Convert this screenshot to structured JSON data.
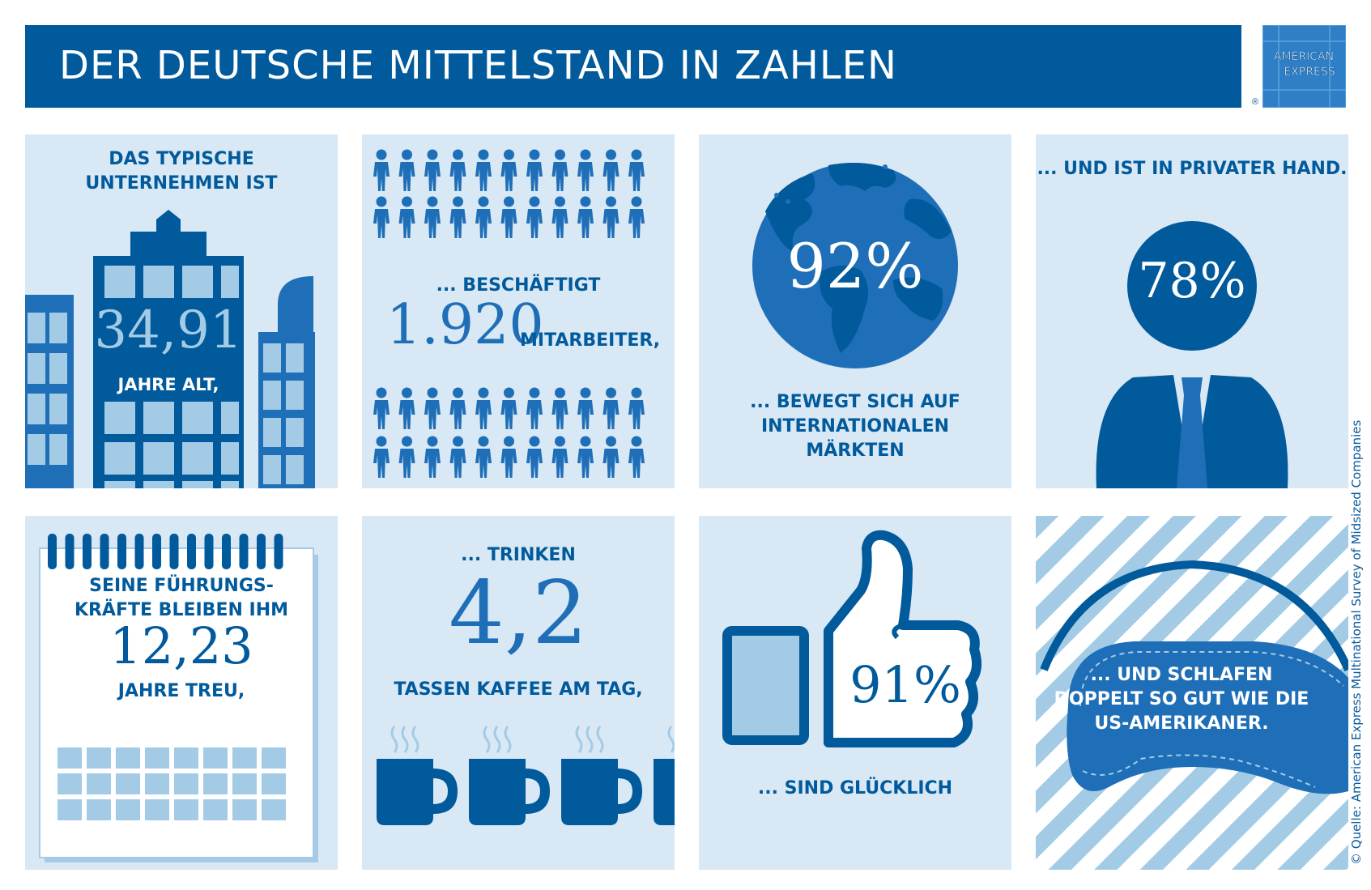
{
  "header": {
    "title": "DER DEUTSCHE MITTELSTAND IN ZAHLEN"
  },
  "logo": {
    "line1": "AMERICAN",
    "line2": "EXPRESS",
    "reg": "®"
  },
  "colors": {
    "dark_blue": "#005a9c",
    "mid_blue": "#1f6fb8",
    "light_blue": "#a4cbe6",
    "panel_bg": "#d8e8f4"
  },
  "panels": {
    "age": {
      "caption1": "DAS TYPISCHE",
      "caption2": "UNTERNEHMEN IST",
      "value": "34,91",
      "unit": "JAHRE ALT,"
    },
    "employees": {
      "caption": "... BESCHÄFTIGT",
      "value": "1.920",
      "unit": "MITARBEITER,"
    },
    "international": {
      "value": "92%",
      "caption1": "... BEWEGT SICH AUF",
      "caption2": "INTERNATIONALEN",
      "caption3": "MÄRKTEN"
    },
    "private": {
      "caption": "... UND IST IN PRIVATER HAND.",
      "value": "78%"
    },
    "loyalty": {
      "caption1": "SEINE FÜHRUNGS-",
      "caption2": "KRÄFTE BLEIBEN IHM",
      "value": "12,23",
      "unit": "JAHRE TREU,"
    },
    "coffee": {
      "caption": "... TRINKEN",
      "value": "4,2",
      "unit": "TASSEN KAFFEE AM TAG,"
    },
    "happy": {
      "value": "91%",
      "caption": "... SIND GLÜCKLICH"
    },
    "sleep": {
      "caption1": "... UND SCHLAFEN",
      "caption2": "DOPPELT SO GUT WIE DIE",
      "caption3": "US-AMERIKANER."
    }
  },
  "source": "© Quelle: American Express Multinational Survey of Midsized Companies"
}
